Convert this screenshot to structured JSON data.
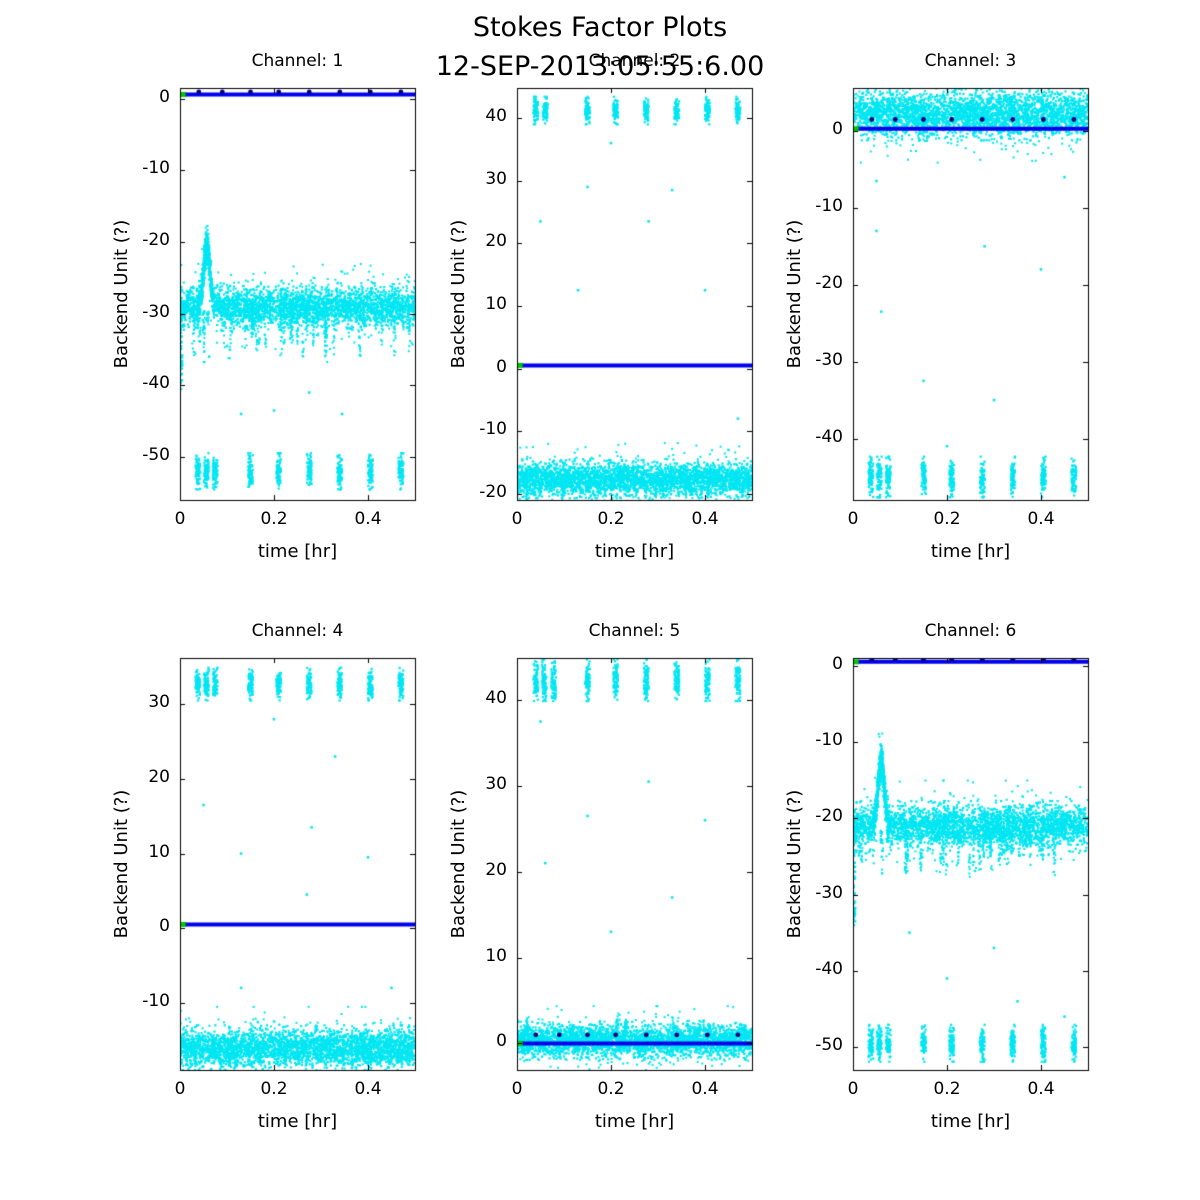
{
  "figure": {
    "title": "Stokes Factor Plots",
    "timestamp": "12-SEP-2013:05:55:6.00",
    "background": "#ffffff",
    "colors": {
      "scatter": "#00e6f2",
      "line": "#0000ee",
      "marker": "#000080",
      "start_marker": "#00c800",
      "axis": "#000000",
      "text": "#000000"
    }
  },
  "chart_data": [
    {
      "type": "scatter",
      "title": "Channel: 1",
      "xlabel": "time [hr]",
      "ylabel": "Backend Unit (?)",
      "xlim": [
        0,
        0.5
      ],
      "xticks": [
        0,
        0.2,
        0.4
      ],
      "ylim": [
        -56,
        1.5
      ],
      "yticks": [
        0,
        -10,
        -20,
        -30,
        -40,
        -50
      ],
      "baseline": {
        "y": 0.6,
        "show_markers": true,
        "marker_dy": 0.35,
        "marker_xs": [
          0.04,
          0.09,
          0.15,
          0.21,
          0.275,
          0.34,
          0.405,
          0.47
        ]
      },
      "band": {
        "center": -29,
        "spread": 1.25,
        "spike": {
          "x": 0.057,
          "peak": -20.5,
          "width": 0.0065
        },
        "start_dip": -40.5
      },
      "dips": {
        "depth": 6,
        "count": 40,
        "dir": -1
      },
      "clusters": {
        "y": -52,
        "xs": [
          0.038,
          0.056,
          0.075,
          0.15,
          0.21,
          0.275,
          0.34,
          0.405,
          0.47
        ],
        "x_jitter": 0.005,
        "y_jitter": 1.15
      },
      "outliers": [
        [
          0.062,
          -36
        ],
        [
          0.13,
          -44
        ],
        [
          0.2,
          -43.5
        ],
        [
          0.275,
          -41
        ],
        [
          0.345,
          -44
        ],
        [
          0.1,
          -34.5
        ]
      ]
    },
    {
      "type": "scatter",
      "title": "Channel: 2",
      "xlabel": "time [hr]",
      "ylabel": "Backend Unit (?)",
      "xlim": [
        0,
        0.5
      ],
      "xticks": [
        0,
        0.2,
        0.4
      ],
      "ylim": [
        -21,
        44.8
      ],
      "yticks": [
        40,
        30,
        20,
        10,
        0,
        -10,
        -20
      ],
      "baseline": {
        "y": 0.5,
        "show_markers": false,
        "marker_dy": 0,
        "marker_xs": []
      },
      "band": {
        "center": -17.6,
        "spread": 1.2
      },
      "dips": {
        "depth": 2.2,
        "count": 30,
        "dir": -1
      },
      "clusters": {
        "y": 41.2,
        "xs": [
          0.04,
          0.06,
          0.15,
          0.21,
          0.275,
          0.34,
          0.405,
          0.47
        ],
        "x_jitter": 0.005,
        "y_jitter": 1.0
      },
      "outliers": [
        [
          0.2,
          36
        ],
        [
          0.15,
          29
        ],
        [
          0.33,
          28.5
        ],
        [
          0.05,
          23.5
        ],
        [
          0.28,
          23.5
        ],
        [
          0.13,
          12.5
        ],
        [
          0.4,
          12.5
        ],
        [
          0.47,
          -8
        ],
        [
          0.45,
          -13
        ]
      ]
    },
    {
      "type": "scatter",
      "title": "Channel: 3",
      "xlabel": "time [hr]",
      "ylabel": "Backend Unit (?)",
      "xlim": [
        0,
        0.5
      ],
      "xticks": [
        0,
        0.2,
        0.4
      ],
      "ylim": [
        -48,
        5.6
      ],
      "yticks": [
        0,
        -10,
        -20,
        -30,
        -40
      ],
      "baseline": {
        "y": 0.3,
        "show_markers": true,
        "marker_dy": 1.2,
        "marker_xs": [
          0.04,
          0.09,
          0.15,
          0.21,
          0.275,
          0.34,
          0.405,
          0.47
        ]
      },
      "band": {
        "center": 2.3,
        "spread": 1.35
      },
      "dips": {
        "depth": 2.5,
        "count": 26,
        "dir": -1
      },
      "clusters": {
        "y": -45,
        "xs": [
          0.038,
          0.056,
          0.075,
          0.15,
          0.21,
          0.275,
          0.34,
          0.405,
          0.47
        ],
        "x_jitter": 0.005,
        "y_jitter": 1.2
      },
      "outliers": [
        [
          0.05,
          -6.5
        ],
        [
          0.45,
          -6
        ],
        [
          0.05,
          -13
        ],
        [
          0.28,
          -15
        ],
        [
          0.4,
          -18
        ],
        [
          0.06,
          -23.5
        ],
        [
          0.15,
          -32.5
        ],
        [
          0.3,
          -35
        ],
        [
          0.2,
          -41
        ]
      ]
    },
    {
      "type": "scatter",
      "title": "Channel: 4",
      "xlabel": "time [hr]",
      "ylabel": "Backend Unit (?)",
      "xlim": [
        0,
        0.5
      ],
      "xticks": [
        0,
        0.2,
        0.4
      ],
      "ylim": [
        -19,
        36.2
      ],
      "yticks": [
        30,
        20,
        10,
        0,
        -10
      ],
      "baseline": {
        "y": 0.5,
        "show_markers": false,
        "marker_dy": 0,
        "marker_xs": []
      },
      "band": {
        "center": -16,
        "spread": 1.15
      },
      "dips": {
        "depth": 2,
        "count": 30,
        "dir": -1
      },
      "clusters": {
        "y": 32.7,
        "xs": [
          0.038,
          0.056,
          0.075,
          0.15,
          0.21,
          0.275,
          0.34,
          0.405,
          0.47
        ],
        "x_jitter": 0.005,
        "y_jitter": 1.0
      },
      "outliers": [
        [
          0.2,
          28
        ],
        [
          0.33,
          23
        ],
        [
          0.05,
          16.5
        ],
        [
          0.28,
          13.5
        ],
        [
          0.13,
          10
        ],
        [
          0.4,
          9.5
        ],
        [
          0.27,
          4.5
        ],
        [
          0.13,
          -8
        ],
        [
          0.45,
          -8
        ],
        [
          0.2,
          -12.5
        ],
        [
          0.47,
          -13
        ]
      ]
    },
    {
      "type": "scatter",
      "title": "Channel: 5",
      "xlabel": "time [hr]",
      "ylabel": "Backend Unit (?)",
      "xlim": [
        0,
        0.5
      ],
      "xticks": [
        0,
        0.2,
        0.4
      ],
      "ylim": [
        -3.1,
        44.9
      ],
      "yticks": [
        40,
        30,
        20,
        10,
        0
      ],
      "baseline": {
        "y": 0,
        "show_markers": true,
        "marker_dy": 1.0,
        "marker_xs": [
          0.04,
          0.09,
          0.15,
          0.21,
          0.275,
          0.34,
          0.405,
          0.47
        ]
      },
      "band": {
        "center": 0.3,
        "spread": 0.85
      },
      "dips": {
        "depth": 2,
        "count": 26,
        "dir": 1
      },
      "clusters": {
        "y": 42.3,
        "xs": [
          0.04,
          0.058,
          0.078,
          0.15,
          0.21,
          0.275,
          0.34,
          0.405,
          0.47
        ],
        "x_jitter": 0.005,
        "y_jitter": 1.1
      },
      "outliers": [
        [
          0.05,
          37.5
        ],
        [
          0.28,
          30.5
        ],
        [
          0.15,
          26.5
        ],
        [
          0.4,
          26
        ],
        [
          0.06,
          21
        ],
        [
          0.33,
          17
        ],
        [
          0.2,
          13
        ]
      ]
    },
    {
      "type": "scatter",
      "title": "Channel: 6",
      "xlabel": "time [hr]",
      "ylabel": "Backend Unit (?)",
      "xlim": [
        0,
        0.5
      ],
      "xticks": [
        0,
        0.2,
        0.4
      ],
      "ylim": [
        -53,
        1.0
      ],
      "yticks": [
        0,
        -10,
        -20,
        -30,
        -40,
        -50
      ],
      "baseline": {
        "y": 0.5,
        "show_markers": true,
        "marker_dy": 0.35,
        "marker_xs": [
          0.04,
          0.09,
          0.15,
          0.21,
          0.275,
          0.34,
          0.405,
          0.47
        ]
      },
      "band": {
        "center": -21,
        "spread": 1.25,
        "spike": {
          "x": 0.06,
          "peak": -12.5,
          "width": 0.0065
        },
        "start_dip": -34
      },
      "dips": {
        "depth": 5,
        "count": 40,
        "dir": -1
      },
      "clusters": {
        "y": -49.5,
        "xs": [
          0.038,
          0.056,
          0.075,
          0.15,
          0.21,
          0.275,
          0.34,
          0.405,
          0.47
        ],
        "x_jitter": 0.005,
        "y_jitter": 1.1
      },
      "outliers": [
        [
          0.12,
          -35
        ],
        [
          0.3,
          -37
        ],
        [
          0.2,
          -41
        ],
        [
          0.35,
          -44
        ],
        [
          0.45,
          -46
        ]
      ]
    }
  ]
}
